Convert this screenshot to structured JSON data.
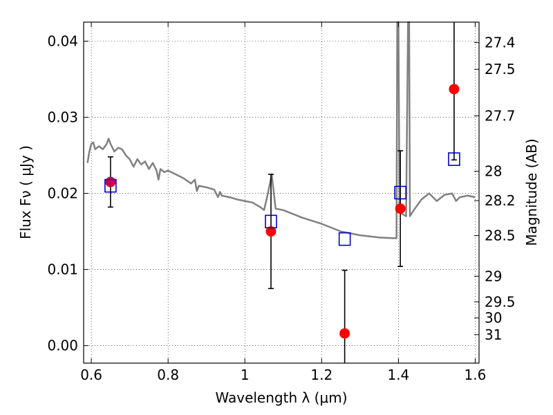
{
  "chart_data": {
    "type": "scatter",
    "xlabel": "Wavelength  λ (μm)",
    "ylabel": "Flux  Fν  ( μJy )",
    "y2label": "Magnitude (AB)",
    "xlim": [
      0.58,
      1.61
    ],
    "ylim": [
      -0.0023,
      0.0425
    ],
    "grid": true,
    "x_ticks": [
      {
        "value": 0.6,
        "label": "0.6"
      },
      {
        "value": 0.8,
        "label": "0.8"
      },
      {
        "value": 1.0,
        "label": "1"
      },
      {
        "value": 1.2,
        "label": "1.2"
      },
      {
        "value": 1.4,
        "label": "1.4"
      },
      {
        "value": 1.6,
        "label": "1.6"
      }
    ],
    "y_ticks": [
      {
        "value": 0.0,
        "label": "0.00"
      },
      {
        "value": 0.01,
        "label": "0.01"
      },
      {
        "value": 0.02,
        "label": "0.02"
      },
      {
        "value": 0.03,
        "label": "0.03"
      },
      {
        "value": 0.04,
        "label": "0.04"
      }
    ],
    "y2_ticks": [
      {
        "value": 27.4,
        "label": "27.4"
      },
      {
        "value": 27.5,
        "label": "27.5"
      },
      {
        "value": 27.7,
        "label": "27.7"
      },
      {
        "value": 28,
        "label": "28"
      },
      {
        "value": 28.2,
        "label": "28.2"
      },
      {
        "value": 28.5,
        "label": "28.5"
      },
      {
        "value": 29,
        "label": "29"
      },
      {
        "value": 29.5,
        "label": "29.5"
      },
      {
        "value": 30,
        "label": "30"
      },
      {
        "value": 31,
        "label": "31"
      }
    ],
    "model_color": "#808080",
    "model_spectrum": {
      "x": [
        0.59,
        0.595,
        0.6,
        0.605,
        0.61,
        0.62,
        0.63,
        0.64,
        0.645,
        0.65,
        0.66,
        0.67,
        0.68,
        0.69,
        0.7,
        0.71,
        0.72,
        0.73,
        0.74,
        0.75,
        0.76,
        0.77,
        0.775,
        0.78,
        0.79,
        0.8,
        0.82,
        0.84,
        0.86,
        0.87,
        0.875,
        0.88,
        0.9,
        0.92,
        0.93,
        0.935,
        0.94,
        0.96,
        0.98,
        1.0,
        1.02,
        1.04,
        1.05,
        1.06,
        1.07,
        1.08,
        1.1,
        1.15,
        1.2,
        1.25,
        1.3,
        1.35,
        1.395,
        1.397,
        1.4,
        1.403,
        1.42,
        1.425,
        1.428,
        1.43,
        1.44,
        1.46,
        1.48,
        1.5,
        1.52,
        1.54,
        1.55,
        1.56,
        1.58,
        1.6
      ],
      "y": [
        0.024,
        0.0255,
        0.0265,
        0.0267,
        0.0258,
        0.0262,
        0.0258,
        0.0265,
        0.0272,
        0.0265,
        0.0255,
        0.026,
        0.0258,
        0.025,
        0.0245,
        0.0235,
        0.0245,
        0.0238,
        0.0242,
        0.0232,
        0.024,
        0.023,
        0.0218,
        0.0232,
        0.0228,
        0.023,
        0.0225,
        0.022,
        0.0213,
        0.0218,
        0.0203,
        0.021,
        0.0208,
        0.0205,
        0.0195,
        0.0202,
        0.0197,
        0.0195,
        0.0192,
        0.019,
        0.0188,
        0.0182,
        0.0178,
        0.02,
        0.0225,
        0.018,
        0.0178,
        0.0168,
        0.016,
        0.015,
        0.0145,
        0.0142,
        0.0141,
        0.0425,
        0.0425,
        0.0175,
        0.017,
        0.0425,
        0.0425,
        0.017,
        0.0178,
        0.0192,
        0.02,
        0.019,
        0.0198,
        0.02,
        0.019,
        0.0195,
        0.0197,
        0.0195
      ]
    },
    "series": [
      {
        "marker": "circle",
        "color": "#ff0000",
        "x": [
          0.65,
          1.068,
          1.26,
          1.405,
          1.545
        ],
        "y": [
          0.0215,
          0.015,
          0.0016,
          0.018,
          0.0337
        ],
        "yerr_low": [
          0.0033,
          0.0075,
          0.0039,
          0.0076,
          0.0093
        ],
        "yerr_high": [
          0.0033,
          0.0075,
          0.0083,
          0.0076,
          0.0093
        ]
      },
      {
        "marker": "square",
        "color": "#0000cc",
        "x": [
          0.65,
          1.068,
          1.26,
          1.405,
          1.545
        ],
        "y": [
          0.021,
          0.0163,
          0.014,
          0.0201,
          0.0245
        ]
      }
    ]
  }
}
